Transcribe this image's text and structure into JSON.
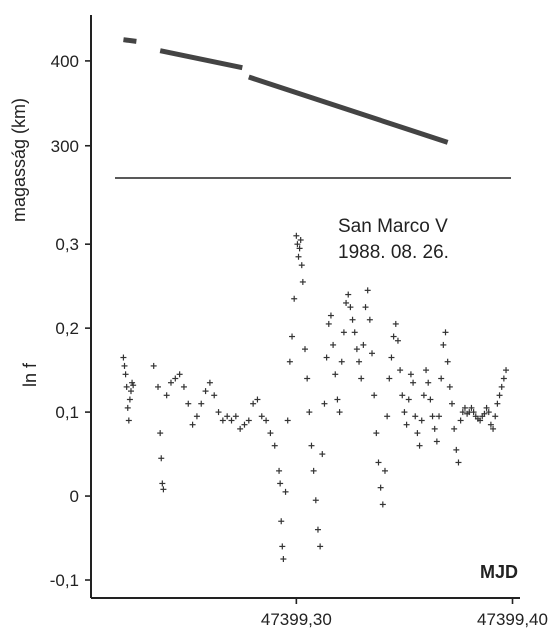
{
  "chart_data": [
    {
      "type": "scatter",
      "panel": "top",
      "ylabel": "magasság (km)",
      "ylim": [
        262,
        460
      ],
      "yticks": [
        {
          "value": 300,
          "label": "300"
        },
        {
          "value": 400,
          "label": "400"
        }
      ],
      "x_range": [
        47399.205,
        47399.403
      ],
      "segments": [
        {
          "x": [
            47399.22,
            47399.226
          ],
          "y": [
            425,
            423
          ]
        },
        {
          "x": [
            47399.237,
            47399.275
          ],
          "y": [
            412,
            392
          ]
        },
        {
          "x": [
            47399.278,
            47399.37
          ],
          "y": [
            381,
            304
          ]
        }
      ]
    },
    {
      "type": "scatter",
      "panel": "bottom",
      "ylabel": "ln f",
      "xlabel": "MJD",
      "ylim": [
        -0.125,
        0.355
      ],
      "yticks": [
        {
          "value": -0.1,
          "label": "-0,1"
        },
        {
          "value": 0,
          "label": "0"
        },
        {
          "value": 0.1,
          "label": "0,1"
        },
        {
          "value": 0.2,
          "label": "0,2"
        },
        {
          "value": 0.3,
          "label": "0,3"
        }
      ],
      "xlim": [
        47399.205,
        47399.403
      ],
      "xticks": [
        {
          "value": 47399.3,
          "label": "47399,30"
        },
        {
          "value": 47399.4,
          "label": "47399,40"
        }
      ],
      "annotation": [
        "San Marco V",
        "1988. 08. 26."
      ],
      "points": [
        [
          47399.22,
          0.165
        ],
        [
          47399.2205,
          0.155
        ],
        [
          47399.221,
          0.145
        ],
        [
          47399.2215,
          0.13
        ],
        [
          47399.222,
          0.105
        ],
        [
          47399.2225,
          0.09
        ],
        [
          47399.223,
          0.115
        ],
        [
          47399.2235,
          0.125
        ],
        [
          47399.224,
          0.135
        ],
        [
          47399.2245,
          0.132
        ],
        [
          47399.234,
          0.155
        ],
        [
          47399.236,
          0.13
        ],
        [
          47399.237,
          0.075
        ],
        [
          47399.2375,
          0.045
        ],
        [
          47399.238,
          0.015
        ],
        [
          47399.2385,
          0.008
        ],
        [
          47399.24,
          0.12
        ],
        [
          47399.242,
          0.135
        ],
        [
          47399.244,
          0.14
        ],
        [
          47399.246,
          0.145
        ],
        [
          47399.248,
          0.13
        ],
        [
          47399.25,
          0.11
        ],
        [
          47399.252,
          0.085
        ],
        [
          47399.254,
          0.095
        ],
        [
          47399.256,
          0.11
        ],
        [
          47399.258,
          0.125
        ],
        [
          47399.26,
          0.135
        ],
        [
          47399.262,
          0.12
        ],
        [
          47399.264,
          0.1
        ],
        [
          47399.266,
          0.09
        ],
        [
          47399.268,
          0.095
        ],
        [
          47399.27,
          0.09
        ],
        [
          47399.272,
          0.095
        ],
        [
          47399.274,
          0.08
        ],
        [
          47399.276,
          0.085
        ],
        [
          47399.278,
          0.09
        ],
        [
          47399.28,
          0.11
        ],
        [
          47399.282,
          0.115
        ],
        [
          47399.284,
          0.095
        ],
        [
          47399.286,
          0.09
        ],
        [
          47399.288,
          0.075
        ],
        [
          47399.29,
          0.06
        ],
        [
          47399.292,
          0.03
        ],
        [
          47399.2925,
          0.015
        ],
        [
          47399.293,
          -0.03
        ],
        [
          47399.2935,
          -0.06
        ],
        [
          47399.294,
          -0.075
        ],
        [
          47399.295,
          0.005
        ],
        [
          47399.296,
          0.09
        ],
        [
          47399.297,
          0.16
        ],
        [
          47399.298,
          0.19
        ],
        [
          47399.299,
          0.235
        ],
        [
          47399.3,
          0.31
        ],
        [
          47399.3005,
          0.3
        ],
        [
          47399.301,
          0.285
        ],
        [
          47399.3015,
          0.295
        ],
        [
          47399.302,
          0.305
        ],
        [
          47399.3025,
          0.275
        ],
        [
          47399.303,
          0.255
        ],
        [
          47399.304,
          0.175
        ],
        [
          47399.305,
          0.14
        ],
        [
          47399.306,
          0.1
        ],
        [
          47399.307,
          0.06
        ],
        [
          47399.308,
          0.03
        ],
        [
          47399.309,
          -0.005
        ],
        [
          47399.31,
          -0.04
        ],
        [
          47399.311,
          -0.06
        ],
        [
          47399.312,
          0.05
        ],
        [
          47399.313,
          0.11
        ],
        [
          47399.314,
          0.165
        ],
        [
          47399.315,
          0.205
        ],
        [
          47399.316,
          0.215
        ],
        [
          47399.317,
          0.18
        ],
        [
          47399.318,
          0.145
        ],
        [
          47399.319,
          0.115
        ],
        [
          47399.32,
          0.1
        ],
        [
          47399.321,
          0.16
        ],
        [
          47399.322,
          0.195
        ],
        [
          47399.323,
          0.23
        ],
        [
          47399.324,
          0.24
        ],
        [
          47399.325,
          0.225
        ],
        [
          47399.326,
          0.21
        ],
        [
          47399.327,
          0.195
        ],
        [
          47399.328,
          0.175
        ],
        [
          47399.329,
          0.16
        ],
        [
          47399.33,
          0.14
        ],
        [
          47399.331,
          0.18
        ],
        [
          47399.332,
          0.225
        ],
        [
          47399.333,
          0.245
        ],
        [
          47399.334,
          0.21
        ],
        [
          47399.335,
          0.17
        ],
        [
          47399.336,
          0.12
        ],
        [
          47399.337,
          0.075
        ],
        [
          47399.338,
          0.04
        ],
        [
          47399.339,
          0.01
        ],
        [
          47399.34,
          -0.01
        ],
        [
          47399.341,
          0.03
        ],
        [
          47399.342,
          0.095
        ],
        [
          47399.343,
          0.14
        ],
        [
          47399.344,
          0.165
        ],
        [
          47399.345,
          0.19
        ],
        [
          47399.346,
          0.205
        ],
        [
          47399.347,
          0.185
        ],
        [
          47399.348,
          0.15
        ],
        [
          47399.349,
          0.12
        ],
        [
          47399.35,
          0.1
        ],
        [
          47399.351,
          0.085
        ],
        [
          47399.352,
          0.115
        ],
        [
          47399.353,
          0.145
        ],
        [
          47399.354,
          0.135
        ],
        [
          47399.355,
          0.095
        ],
        [
          47399.356,
          0.075
        ],
        [
          47399.357,
          0.06
        ],
        [
          47399.358,
          0.09
        ],
        [
          47399.359,
          0.12
        ],
        [
          47399.36,
          0.15
        ],
        [
          47399.361,
          0.135
        ],
        [
          47399.362,
          0.115
        ],
        [
          47399.363,
          0.095
        ],
        [
          47399.364,
          0.08
        ],
        [
          47399.365,
          0.065
        ],
        [
          47399.366,
          0.095
        ],
        [
          47399.367,
          0.14
        ],
        [
          47399.368,
          0.18
        ],
        [
          47399.369,
          0.195
        ],
        [
          47399.37,
          0.16
        ],
        [
          47399.371,
          0.13
        ],
        [
          47399.372,
          0.11
        ],
        [
          47399.373,
          0.08
        ],
        [
          47399.374,
          0.055
        ],
        [
          47399.375,
          0.04
        ],
        [
          47399.376,
          0.09
        ],
        [
          47399.377,
          0.1
        ],
        [
          47399.378,
          0.105
        ],
        [
          47399.379,
          0.098
        ],
        [
          47399.38,
          0.1
        ],
        [
          47399.381,
          0.105
        ],
        [
          47399.382,
          0.1
        ],
        [
          47399.383,
          0.095
        ],
        [
          47399.384,
          0.092
        ],
        [
          47399.385,
          0.09
        ],
        [
          47399.386,
          0.095
        ],
        [
          47399.387,
          0.098
        ],
        [
          47399.388,
          0.105
        ],
        [
          47399.389,
          0.1
        ],
        [
          47399.39,
          0.085
        ],
        [
          47399.391,
          0.08
        ],
        [
          47399.392,
          0.095
        ],
        [
          47399.393,
          0.11
        ],
        [
          47399.394,
          0.12
        ],
        [
          47399.395,
          0.13
        ],
        [
          47399.396,
          0.14
        ],
        [
          47399.397,
          0.15
        ]
      ]
    }
  ]
}
